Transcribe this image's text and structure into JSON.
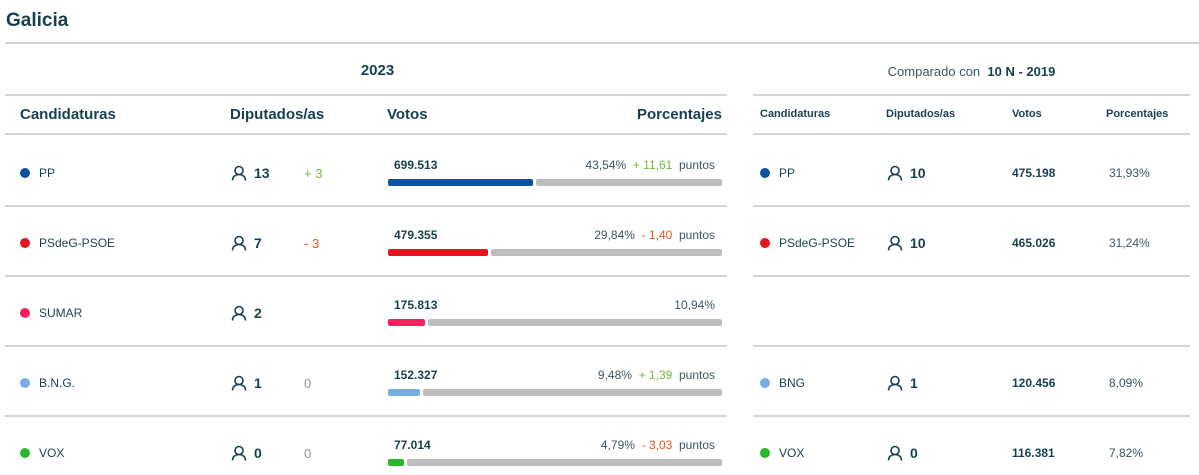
{
  "title": "Galicia",
  "left": {
    "year": "2023",
    "headers": [
      "Candidaturas",
      "Diputados/as",
      "Votos",
      "Porcentajes"
    ],
    "points_label": "puntos"
  },
  "right": {
    "compare_prefix": "Comparado con",
    "compare_value": "10 N - 2019",
    "headers": [
      "Candidaturas",
      "Diputados/as",
      "Votos",
      "Porcentajes"
    ]
  },
  "rows": [
    {
      "name": "PP",
      "color": "#0b53a0",
      "seats": "13",
      "seat_diff": "+ 3",
      "diff_color": "#7cb342",
      "votes": "699.513",
      "pct": "43,54%",
      "pct_value": 43.54,
      "pct_diff": "+ 11,61",
      "pct_diff_color": "#7cb342",
      "prev": {
        "name": "PP",
        "seats": "10",
        "votes": "475.198",
        "pct": "31,93%"
      }
    },
    {
      "name": "PSdeG-PSOE",
      "color": "#e3161f",
      "seats": "7",
      "seat_diff": "- 3",
      "diff_color": "#e0541f",
      "votes": "479.355",
      "pct": "29,84%",
      "pct_value": 29.84,
      "pct_diff": "- 1,40",
      "pct_diff_color": "#e0541f",
      "prev": {
        "name": "PSdeG-PSOE",
        "seats": "10",
        "votes": "465.026",
        "pct": "31,24%"
      }
    },
    {
      "name": "SUMAR",
      "color": "#f5215e",
      "seats": "2",
      "seat_diff": "",
      "diff_color": "#8a8a8a",
      "votes": "175.813",
      "pct": "10,94%",
      "pct_value": 10.94,
      "pct_diff": "",
      "pct_diff_color": "#7cb342",
      "prev": null
    },
    {
      "name": "B.N.G.",
      "color": "#76aee3",
      "seats": "1",
      "seat_diff": "0",
      "diff_color": "#8a9599",
      "votes": "152.327",
      "pct": "9,48%",
      "pct_value": 9.48,
      "pct_diff": "+ 1,39",
      "pct_diff_color": "#7cb342",
      "prev": {
        "name": "BNG",
        "seats": "1",
        "votes": "120.456",
        "pct": "8,09%"
      }
    },
    {
      "name": "VOX",
      "color": "#2bb52b",
      "seats": "0",
      "seat_diff": "0",
      "diff_color": "#8a9599",
      "votes": "77.014",
      "pct": "4,79%",
      "pct_value": 4.79,
      "pct_diff": "- 3,03",
      "pct_diff_color": "#e0541f",
      "prev": {
        "name": "VOX",
        "seats": "0",
        "votes": "116.381",
        "pct": "7,82%"
      }
    }
  ]
}
